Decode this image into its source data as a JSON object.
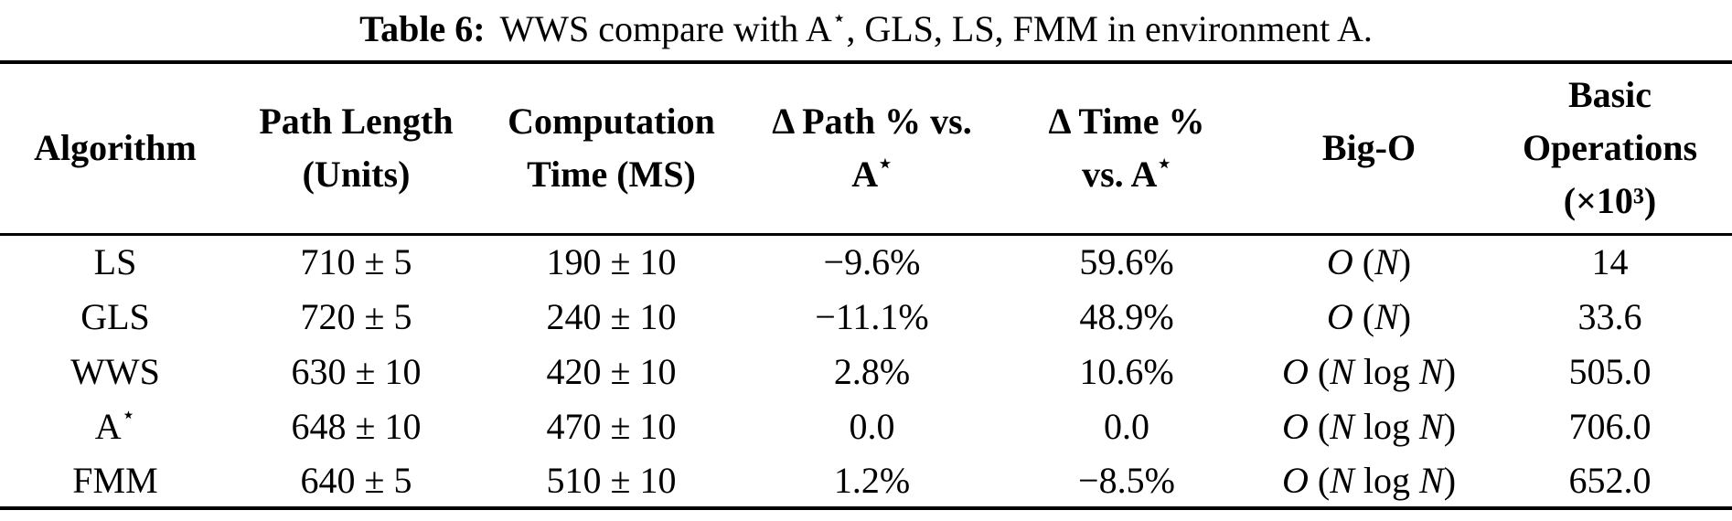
{
  "title": {
    "label": "Table 6:",
    "text": "WWS compare with A⋆, GLS, LS, FMM in environment A."
  },
  "table": {
    "headers": [
      "Algorithm",
      "Path Length\n(Units)",
      "Computation\nTime (MS)",
      "Δ Path % vs.\nA⋆",
      "Δ Time %\nvs. A⋆",
      "Big-O",
      "Basic\nOperations\n(×10³)"
    ],
    "column_keys": [
      "algorithm",
      "path_length_units",
      "computation_time_ms",
      "delta_path_pct_vs_astar",
      "delta_time_pct_vs_astar",
      "big_o",
      "basic_operations_e3"
    ],
    "rows": [
      [
        "LS",
        "710 ± 5",
        "190 ± 10",
        "−9.6%",
        "59.6%",
        "O (N)",
        "14"
      ],
      [
        "GLS",
        "720 ± 5",
        "240 ± 10",
        "−11.1%",
        "48.9%",
        "O (N)",
        "33.6"
      ],
      [
        "WWS",
        "630 ± 10",
        "420 ± 10",
        "2.8%",
        "10.6%",
        "O (N log N)",
        "505.0"
      ],
      [
        "A⋆",
        "648 ± 10",
        "470 ± 10",
        "0.0",
        "0.0",
        "O (N log N)",
        "706.0"
      ],
      [
        "FMM",
        "640 ± 5",
        "510 ± 10",
        "1.2%",
        "−8.5%",
        "O (N log N)",
        "652.0"
      ]
    ]
  },
  "colors": {
    "text": "#000000",
    "background": "#ffffff",
    "rule": "#000000"
  }
}
